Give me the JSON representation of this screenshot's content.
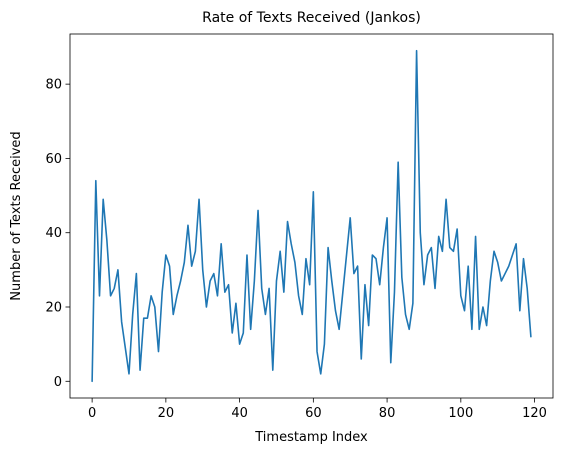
{
  "chart_data": {
    "type": "line",
    "title": "Rate of Texts Received (Jankos)",
    "xlabel": "Timestamp Index",
    "ylabel": "Number of Texts Received",
    "xlim": [
      -6,
      125
    ],
    "ylim": [
      -4.5,
      93.5
    ],
    "x_ticks": [
      0,
      20,
      40,
      60,
      80,
      100,
      120
    ],
    "y_ticks": [
      0,
      20,
      40,
      60,
      80
    ],
    "grid": false,
    "series": [
      {
        "color": "#1f77b4",
        "values": [
          0,
          54,
          23,
          49,
          38,
          23,
          25,
          30,
          16,
          9,
          2,
          18,
          29,
          3,
          17,
          17,
          23,
          20,
          8,
          24,
          34,
          31,
          18,
          23,
          27,
          32,
          42,
          31,
          35,
          49,
          30,
          20,
          27,
          29,
          23,
          37,
          24,
          26,
          13,
          21,
          10,
          13,
          34,
          14,
          27,
          46,
          25,
          18,
          25,
          3,
          27,
          35,
          24,
          43,
          37,
          32,
          23,
          18,
          33,
          26,
          51,
          8,
          2,
          10,
          36,
          27,
          19,
          14,
          24,
          34,
          44,
          29,
          31,
          6,
          26,
          15,
          34,
          33,
          26,
          36,
          44,
          5,
          24,
          59,
          28,
          18,
          14,
          21,
          89,
          40,
          26,
          34,
          36,
          25,
          39,
          35,
          49,
          36,
          35,
          41,
          23,
          19,
          31,
          14,
          39,
          14,
          20,
          15,
          27,
          35,
          32,
          27,
          29,
          31,
          34,
          37,
          19,
          33,
          25,
          12
        ]
      }
    ]
  }
}
